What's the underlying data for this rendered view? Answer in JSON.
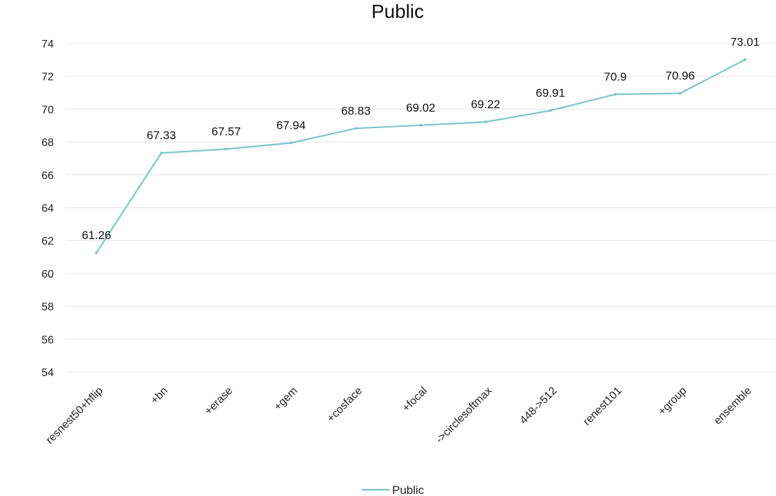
{
  "chart_data": {
    "type": "line",
    "title": "Public",
    "xlabel": "",
    "ylabel": "",
    "categories": [
      "resnest50+hflip",
      "+bn",
      "+erase",
      "+gem",
      "+cosface",
      "+focal",
      "->circlesoftmax",
      "448->512",
      "renest101",
      "+group",
      "ensemble"
    ],
    "series": [
      {
        "name": "Public",
        "values": [
          61.26,
          67.33,
          67.57,
          67.94,
          68.83,
          69.02,
          69.22,
          69.91,
          70.9,
          70.96,
          73.01
        ],
        "labels": [
          "61.26",
          "67.33",
          "67.57",
          "67.94",
          "68.83",
          "69.02",
          "69.22",
          "69.91",
          "70.9",
          "70.96",
          "73.01"
        ],
        "color": "#7cc5cc"
      }
    ],
    "ylim": [
      54,
      74
    ],
    "yticks": [
      54,
      56,
      58,
      60,
      62,
      64,
      66,
      68,
      70,
      72,
      74
    ],
    "grid": true,
    "legend_position": "bottom"
  }
}
